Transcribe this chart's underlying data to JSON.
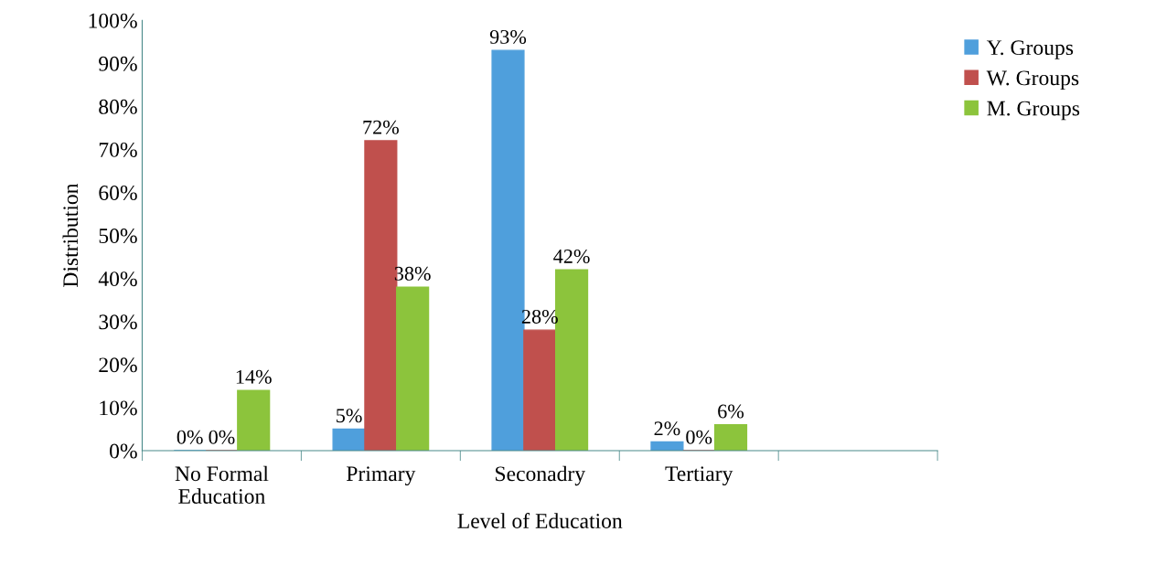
{
  "chart_data": {
    "type": "bar",
    "xlabel": "Level of Education",
    "ylabel": "Distribution",
    "categories": [
      "No Formal\nEducation",
      "Primary",
      "Seconadry",
      "Tertiary",
      null
    ],
    "series": [
      {
        "name": "Y. Groups",
        "color": "#4f9fdc",
        "values": [
          0,
          5,
          93,
          2,
          null
        ],
        "value_labels": [
          "0%",
          "5%",
          "93%",
          "2%",
          null
        ]
      },
      {
        "name": "W. Groups",
        "color": "#c0504d",
        "values": [
          0,
          72,
          28,
          0,
          null
        ],
        "value_labels": [
          "0%",
          "72%",
          "28%",
          "0%",
          null
        ]
      },
      {
        "name": "M. Groups",
        "color": "#8cc43c",
        "values": [
          14,
          38,
          42,
          6,
          null
        ],
        "value_labels": [
          "14%",
          "38%",
          "42%",
          "6%",
          null
        ]
      }
    ],
    "ylim": [
      0,
      100
    ],
    "yticks": [
      {
        "value": 0,
        "label": "0%"
      },
      {
        "value": 10,
        "label": "10%"
      },
      {
        "value": 20,
        "label": "20%"
      },
      {
        "value": 30,
        "label": "30%"
      },
      {
        "value": 40,
        "label": "40%"
      },
      {
        "value": 50,
        "label": "50%"
      },
      {
        "value": 60,
        "label": "60%"
      },
      {
        "value": 70,
        "label": "70%"
      },
      {
        "value": 80,
        "label": "80%"
      },
      {
        "value": 90,
        "label": "90%"
      },
      {
        "value": 100,
        "label": "100%"
      }
    ],
    "grid": false,
    "legend": "right"
  }
}
